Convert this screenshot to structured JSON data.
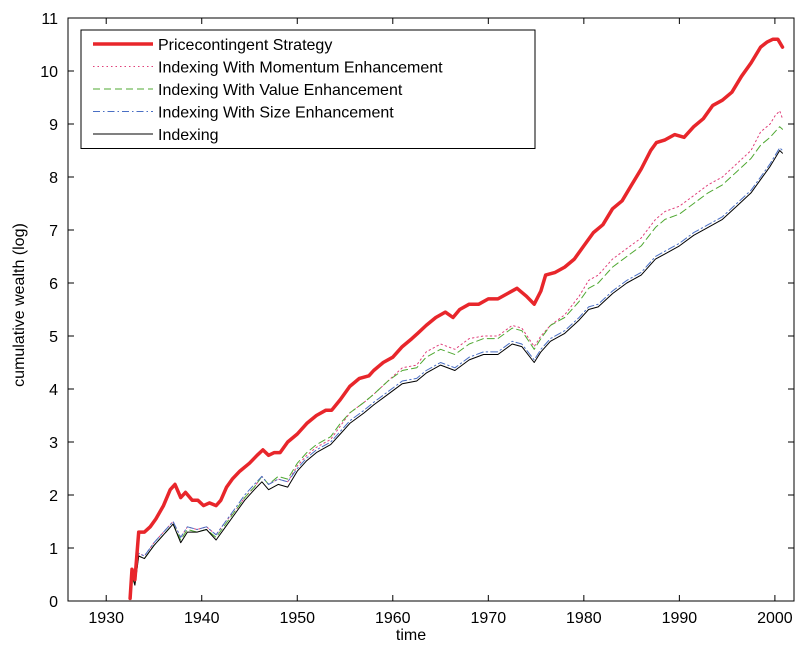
{
  "chart_data": {
    "type": "line",
    "xlabel": "time",
    "ylabel": "cumulative wealth (log)",
    "xlim": [
      1926,
      2002
    ],
    "ylim": [
      0,
      11
    ],
    "x_ticks": [
      1930,
      1940,
      1950,
      1960,
      1970,
      1980,
      1990,
      2000
    ],
    "y_ticks": [
      0,
      1,
      2,
      3,
      4,
      5,
      6,
      7,
      8,
      9,
      10,
      11
    ],
    "grid": false,
    "legend_position": "top-left",
    "series": [
      {
        "name": "Pricecontingent Strategy",
        "color": "#e8262b",
        "style": "solid-thick",
        "x": [
          1932.5,
          1932.7,
          1933.0,
          1933.4,
          1934.0,
          1934.6,
          1935.2,
          1936.0,
          1936.7,
          1937.2,
          1937.8,
          1938.3,
          1939.0,
          1939.6,
          1940.2,
          1940.8,
          1941.5,
          1942.0,
          1942.6,
          1943.2,
          1944.0,
          1945.0,
          1945.8,
          1946.4,
          1947.0,
          1947.6,
          1948.2,
          1949.0,
          1950.0,
          1951.0,
          1952.0,
          1953.0,
          1953.6,
          1954.5,
          1955.5,
          1956.5,
          1957.5,
          1958.0,
          1959.0,
          1960.0,
          1961.0,
          1962.0,
          1962.6,
          1963.5,
          1964.5,
          1965.5,
          1966.3,
          1967.0,
          1968.0,
          1969.0,
          1970.0,
          1971.0,
          1972.0,
          1973.0,
          1974.0,
          1974.8,
          1975.5,
          1976.0,
          1977.0,
          1978.0,
          1979.0,
          1980.0,
          1981.0,
          1982.0,
          1983.0,
          1984.0,
          1985.0,
          1986.0,
          1987.0,
          1987.6,
          1988.5,
          1989.5,
          1990.5,
          1991.5,
          1992.5,
          1993.5,
          1994.5,
          1995.5,
          1996.5,
          1997.5,
          1998.5,
          1999.2,
          1999.8,
          2000.3,
          2000.8
        ],
        "y": [
          0.05,
          0.6,
          0.4,
          1.3,
          1.3,
          1.4,
          1.55,
          1.8,
          2.1,
          2.2,
          1.95,
          2.05,
          1.9,
          1.9,
          1.8,
          1.85,
          1.8,
          1.9,
          2.15,
          2.3,
          2.45,
          2.6,
          2.75,
          2.85,
          2.75,
          2.8,
          2.8,
          3.0,
          3.15,
          3.35,
          3.5,
          3.6,
          3.6,
          3.8,
          4.05,
          4.2,
          4.25,
          4.35,
          4.5,
          4.6,
          4.8,
          4.95,
          5.05,
          5.2,
          5.35,
          5.45,
          5.35,
          5.5,
          5.6,
          5.6,
          5.7,
          5.7,
          5.8,
          5.9,
          5.75,
          5.6,
          5.85,
          6.15,
          6.2,
          6.3,
          6.45,
          6.7,
          6.95,
          7.1,
          7.4,
          7.55,
          7.85,
          8.15,
          8.5,
          8.65,
          8.7,
          8.8,
          8.75,
          8.95,
          9.1,
          9.35,
          9.45,
          9.6,
          9.9,
          10.15,
          10.45,
          10.55,
          10.6,
          10.6,
          10.45
        ]
      },
      {
        "name": "Indexing With Momentum Enhancement",
        "color": "#e0407a",
        "style": "dotted",
        "x": [
          1932.5,
          1932.7,
          1933.0,
          1933.4,
          1934.0,
          1935.0,
          1936.0,
          1937.0,
          1937.8,
          1938.5,
          1939.5,
          1940.5,
          1941.5,
          1942.5,
          1943.5,
          1944.5,
          1945.5,
          1946.3,
          1947.0,
          1948.0,
          1949.0,
          1950.0,
          1951.0,
          1952.0,
          1953.5,
          1954.5,
          1955.5,
          1957.0,
          1958.0,
          1959.5,
          1961.0,
          1962.5,
          1963.5,
          1965.0,
          1966.5,
          1968.0,
          1969.5,
          1971.0,
          1972.5,
          1973.5,
          1974.8,
          1975.5,
          1976.5,
          1978.0,
          1979.5,
          1980.5,
          1981.5,
          1983.0,
          1984.5,
          1986.0,
          1987.5,
          1988.5,
          1990.0,
          1991.5,
          1993.0,
          1994.5,
          1996.0,
          1997.5,
          1998.5,
          1999.5,
          2000.0,
          2000.5,
          2000.8
        ],
        "y": [
          0.1,
          0.5,
          0.3,
          0.9,
          0.85,
          1.1,
          1.3,
          1.5,
          1.2,
          1.4,
          1.35,
          1.4,
          1.25,
          1.5,
          1.7,
          1.95,
          2.15,
          2.35,
          2.2,
          2.3,
          2.25,
          2.55,
          2.75,
          2.9,
          3.05,
          3.3,
          3.55,
          3.75,
          3.9,
          4.15,
          4.4,
          4.45,
          4.7,
          4.85,
          4.75,
          4.95,
          5.0,
          5.0,
          5.2,
          5.15,
          4.8,
          5.0,
          5.2,
          5.4,
          5.75,
          6.05,
          6.15,
          6.45,
          6.65,
          6.85,
          7.2,
          7.35,
          7.45,
          7.65,
          7.85,
          8.0,
          8.25,
          8.5,
          8.85,
          9.0,
          9.15,
          9.25,
          9.1
        ]
      },
      {
        "name": "Indexing With Value Enhancement",
        "color": "#4fa832",
        "style": "dashed",
        "x": [
          1932.5,
          1932.7,
          1933.0,
          1933.4,
          1934.0,
          1935.0,
          1936.0,
          1937.0,
          1937.8,
          1938.5,
          1939.5,
          1940.5,
          1941.5,
          1942.5,
          1943.5,
          1944.5,
          1945.5,
          1946.3,
          1947.0,
          1948.0,
          1949.0,
          1950.0,
          1951.0,
          1952.0,
          1953.5,
          1954.5,
          1955.5,
          1957.0,
          1958.0,
          1959.5,
          1961.0,
          1962.5,
          1963.5,
          1965.0,
          1966.5,
          1968.0,
          1969.5,
          1971.0,
          1972.5,
          1973.5,
          1974.8,
          1975.5,
          1976.5,
          1978.0,
          1979.5,
          1980.5,
          1981.5,
          1983.0,
          1984.5,
          1986.0,
          1987.5,
          1988.5,
          1990.0,
          1991.5,
          1993.0,
          1994.5,
          1996.0,
          1997.5,
          1998.5,
          1999.5,
          2000.0,
          2000.5,
          2000.8
        ],
        "y": [
          0.05,
          0.45,
          0.3,
          0.85,
          0.8,
          1.05,
          1.25,
          1.45,
          1.15,
          1.35,
          1.3,
          1.35,
          1.2,
          1.45,
          1.7,
          1.95,
          2.15,
          2.35,
          2.2,
          2.35,
          2.3,
          2.6,
          2.8,
          2.95,
          3.1,
          3.35,
          3.55,
          3.75,
          3.9,
          4.15,
          4.35,
          4.4,
          4.6,
          4.75,
          4.65,
          4.85,
          4.95,
          4.95,
          5.15,
          5.1,
          4.75,
          4.95,
          5.2,
          5.35,
          5.65,
          5.9,
          6.0,
          6.3,
          6.5,
          6.7,
          7.05,
          7.2,
          7.3,
          7.5,
          7.7,
          7.85,
          8.1,
          8.35,
          8.6,
          8.75,
          8.85,
          8.95,
          8.9
        ]
      },
      {
        "name": "Indexing With Size Enhancement",
        "color": "#4a6fc4",
        "style": "dash-dot",
        "x": [
          1932.5,
          1932.7,
          1933.0,
          1933.4,
          1934.0,
          1935.0,
          1936.0,
          1937.0,
          1937.8,
          1938.5,
          1939.5,
          1940.5,
          1941.5,
          1942.5,
          1943.5,
          1944.5,
          1945.5,
          1946.3,
          1947.0,
          1948.0,
          1949.0,
          1950.0,
          1951.0,
          1952.0,
          1953.5,
          1954.5,
          1955.5,
          1957.0,
          1958.0,
          1959.5,
          1961.0,
          1962.5,
          1963.5,
          1965.0,
          1966.5,
          1968.0,
          1969.5,
          1971.0,
          1972.5,
          1973.5,
          1974.8,
          1975.5,
          1976.5,
          1978.0,
          1979.5,
          1980.5,
          1981.5,
          1983.0,
          1984.5,
          1986.0,
          1987.5,
          1988.5,
          1990.0,
          1991.5,
          1993.0,
          1994.5,
          1996.0,
          1997.5,
          1998.5,
          1999.5,
          2000.0,
          2000.5,
          2000.8
        ],
        "y": [
          0.1,
          0.55,
          0.35,
          0.9,
          0.85,
          1.1,
          1.3,
          1.5,
          1.2,
          1.4,
          1.35,
          1.4,
          1.25,
          1.5,
          1.75,
          2.0,
          2.2,
          2.35,
          2.2,
          2.3,
          2.25,
          2.5,
          2.7,
          2.85,
          3.0,
          3.2,
          3.4,
          3.6,
          3.75,
          3.95,
          4.15,
          4.2,
          4.35,
          4.5,
          4.4,
          4.6,
          4.7,
          4.7,
          4.9,
          4.85,
          4.55,
          4.75,
          4.95,
          5.1,
          5.35,
          5.55,
          5.6,
          5.85,
          6.05,
          6.2,
          6.5,
          6.6,
          6.75,
          6.95,
          7.1,
          7.25,
          7.5,
          7.75,
          8.0,
          8.25,
          8.4,
          8.55,
          8.5
        ]
      },
      {
        "name": "Indexing",
        "color": "#000000",
        "style": "solid",
        "x": [
          1932.5,
          1932.7,
          1933.0,
          1933.4,
          1934.0,
          1935.0,
          1936.0,
          1937.0,
          1937.8,
          1938.5,
          1939.5,
          1940.5,
          1941.5,
          1942.5,
          1943.5,
          1944.5,
          1945.5,
          1946.3,
          1947.0,
          1948.0,
          1949.0,
          1950.0,
          1951.0,
          1952.0,
          1953.5,
          1954.5,
          1955.5,
          1957.0,
          1958.0,
          1959.5,
          1961.0,
          1962.5,
          1963.5,
          1965.0,
          1966.5,
          1968.0,
          1969.5,
          1971.0,
          1972.5,
          1973.5,
          1974.8,
          1975.5,
          1976.5,
          1978.0,
          1979.5,
          1980.5,
          1981.5,
          1983.0,
          1984.5,
          1986.0,
          1987.5,
          1988.5,
          1990.0,
          1991.5,
          1993.0,
          1994.5,
          1996.0,
          1997.5,
          1998.5,
          1999.5,
          2000.0,
          2000.5,
          2000.8
        ],
        "y": [
          0.05,
          0.5,
          0.3,
          0.85,
          0.8,
          1.05,
          1.25,
          1.45,
          1.1,
          1.3,
          1.3,
          1.35,
          1.15,
          1.4,
          1.65,
          1.9,
          2.1,
          2.25,
          2.1,
          2.2,
          2.15,
          2.45,
          2.65,
          2.8,
          2.95,
          3.15,
          3.35,
          3.55,
          3.7,
          3.9,
          4.1,
          4.15,
          4.3,
          4.45,
          4.35,
          4.55,
          4.65,
          4.65,
          4.85,
          4.8,
          4.5,
          4.7,
          4.9,
          5.05,
          5.3,
          5.5,
          5.55,
          5.8,
          6.0,
          6.15,
          6.45,
          6.55,
          6.7,
          6.9,
          7.05,
          7.2,
          7.45,
          7.7,
          7.95,
          8.2,
          8.35,
          8.5,
          8.45
        ]
      }
    ]
  }
}
